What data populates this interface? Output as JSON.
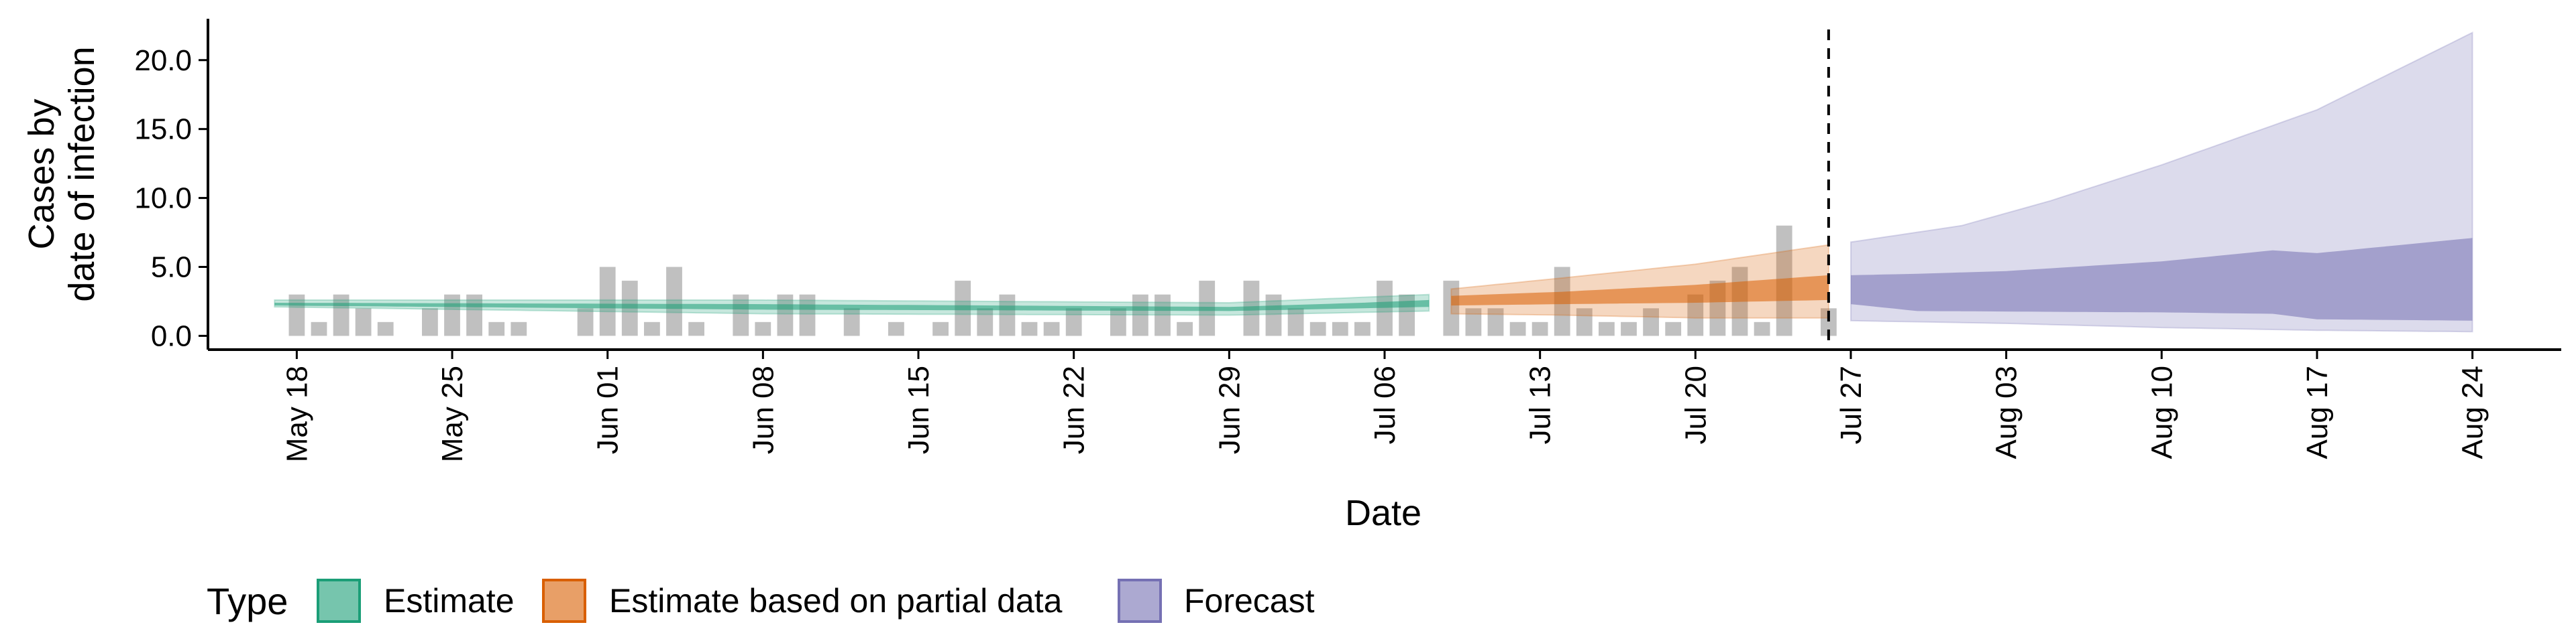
{
  "chart_data": {
    "type": "area",
    "xlabel": "Date",
    "ylabel_lines": [
      "Cases by",
      "date of infection"
    ],
    "y_ticks": [
      "0.0",
      "5.0",
      "10.0",
      "15.0",
      "20.0"
    ],
    "y_tick_values": [
      0,
      5,
      10,
      15,
      20
    ],
    "ylim": [
      -1,
      23
    ],
    "x_range": [
      "2020-05-14",
      "2020-08-28"
    ],
    "x_ticks": [
      {
        "date": "2020-05-18",
        "label": "May 18"
      },
      {
        "date": "2020-05-25",
        "label": "May 25"
      },
      {
        "date": "2020-06-01",
        "label": "Jun 01"
      },
      {
        "date": "2020-06-08",
        "label": "Jun 08"
      },
      {
        "date": "2020-06-15",
        "label": "Jun 15"
      },
      {
        "date": "2020-06-22",
        "label": "Jun 22"
      },
      {
        "date": "2020-06-29",
        "label": "Jun 29"
      },
      {
        "date": "2020-07-06",
        "label": "Jul 06"
      },
      {
        "date": "2020-07-13",
        "label": "Jul 13"
      },
      {
        "date": "2020-07-20",
        "label": "Jul 20"
      },
      {
        "date": "2020-07-27",
        "label": "Jul 27"
      },
      {
        "date": "2020-08-03",
        "label": "Aug 03"
      },
      {
        "date": "2020-08-10",
        "label": "Aug 10"
      },
      {
        "date": "2020-08-17",
        "label": "Aug 17"
      },
      {
        "date": "2020-08-24",
        "label": "Aug 24"
      }
    ],
    "reference_line_date": "2020-07-26",
    "observed_cases": {
      "color": "#bdbdbd",
      "points": [
        [
          "2020-05-18",
          3
        ],
        [
          "2020-05-19",
          1
        ],
        [
          "2020-05-20",
          3
        ],
        [
          "2020-05-21",
          2
        ],
        [
          "2020-05-22",
          1
        ],
        [
          "2020-05-24",
          2
        ],
        [
          "2020-05-25",
          3
        ],
        [
          "2020-05-26",
          3
        ],
        [
          "2020-05-27",
          1
        ],
        [
          "2020-05-28",
          1
        ],
        [
          "2020-05-31",
          2
        ],
        [
          "2020-06-01",
          5
        ],
        [
          "2020-06-02",
          4
        ],
        [
          "2020-06-03",
          1
        ],
        [
          "2020-06-04",
          5
        ],
        [
          "2020-06-05",
          1
        ],
        [
          "2020-06-07",
          3
        ],
        [
          "2020-06-08",
          1
        ],
        [
          "2020-06-09",
          3
        ],
        [
          "2020-06-10",
          3
        ],
        [
          "2020-06-12",
          2
        ],
        [
          "2020-06-14",
          1
        ],
        [
          "2020-06-16",
          1
        ],
        [
          "2020-06-17",
          4
        ],
        [
          "2020-06-18",
          2
        ],
        [
          "2020-06-19",
          3
        ],
        [
          "2020-06-20",
          1
        ],
        [
          "2020-06-21",
          1
        ],
        [
          "2020-06-22",
          2
        ],
        [
          "2020-06-24",
          2
        ],
        [
          "2020-06-25",
          3
        ],
        [
          "2020-06-26",
          3
        ],
        [
          "2020-06-27",
          1
        ],
        [
          "2020-06-28",
          4
        ],
        [
          "2020-06-30",
          4
        ],
        [
          "2020-07-01",
          3
        ],
        [
          "2020-07-02",
          2
        ],
        [
          "2020-07-03",
          1
        ],
        [
          "2020-07-04",
          1
        ],
        [
          "2020-07-05",
          1
        ],
        [
          "2020-07-06",
          4
        ],
        [
          "2020-07-07",
          3
        ],
        [
          "2020-07-09",
          4
        ],
        [
          "2020-07-10",
          2
        ],
        [
          "2020-07-11",
          2
        ],
        [
          "2020-07-12",
          1
        ],
        [
          "2020-07-13",
          1
        ],
        [
          "2020-07-14",
          5
        ],
        [
          "2020-07-15",
          2
        ],
        [
          "2020-07-16",
          1
        ],
        [
          "2020-07-17",
          1
        ],
        [
          "2020-07-18",
          2
        ],
        [
          "2020-07-19",
          1
        ],
        [
          "2020-07-20",
          3
        ],
        [
          "2020-07-21",
          4
        ],
        [
          "2020-07-22",
          5
        ],
        [
          "2020-07-23",
          1
        ],
        [
          "2020-07-24",
          8
        ],
        [
          "2020-07-26",
          2
        ]
      ]
    },
    "series": [
      {
        "name": "Estimate",
        "fill": "#1b9e77",
        "stroke": "#1b9e77",
        "outer_upper": [
          [
            "2020-05-17",
            2.6
          ],
          [
            "2020-06-08",
            2.6
          ],
          [
            "2020-06-29",
            2.4
          ],
          [
            "2020-07-05",
            2.8
          ],
          [
            "2020-07-08",
            3.0
          ]
        ],
        "outer_lower": [
          [
            "2020-05-17",
            2.1
          ],
          [
            "2020-06-08",
            1.6
          ],
          [
            "2020-06-29",
            1.5
          ],
          [
            "2020-07-05",
            1.7
          ],
          [
            "2020-07-08",
            1.8
          ]
        ],
        "inner_upper": [
          [
            "2020-05-17",
            2.4
          ],
          [
            "2020-06-08",
            2.3
          ],
          [
            "2020-06-29",
            2.1
          ],
          [
            "2020-07-05",
            2.4
          ],
          [
            "2020-07-08",
            2.6
          ]
        ],
        "inner_lower": [
          [
            "2020-05-17",
            2.2
          ],
          [
            "2020-06-08",
            1.9
          ],
          [
            "2020-06-29",
            1.8
          ],
          [
            "2020-07-05",
            2.0
          ],
          [
            "2020-07-08",
            2.1
          ]
        ]
      },
      {
        "name": "Estimate based on partial data",
        "fill": "#d95f02",
        "stroke": "#d95f02",
        "outer_upper": [
          [
            "2020-07-09",
            3.4
          ],
          [
            "2020-07-14",
            4.2
          ],
          [
            "2020-07-20",
            5.2
          ],
          [
            "2020-07-26",
            6.6
          ]
        ],
        "outer_lower": [
          [
            "2020-07-09",
            1.6
          ],
          [
            "2020-07-14",
            1.5
          ],
          [
            "2020-07-20",
            1.3
          ],
          [
            "2020-07-26",
            1.3
          ]
        ],
        "inner_upper": [
          [
            "2020-07-09",
            2.9
          ],
          [
            "2020-07-14",
            3.2
          ],
          [
            "2020-07-20",
            3.7
          ],
          [
            "2020-07-26",
            4.4
          ]
        ],
        "inner_lower": [
          [
            "2020-07-09",
            2.2
          ],
          [
            "2020-07-14",
            2.3
          ],
          [
            "2020-07-20",
            2.4
          ],
          [
            "2020-07-26",
            2.6
          ]
        ]
      },
      {
        "name": "Forecast",
        "fill": "#7570b3",
        "stroke": "#7570b3",
        "outer_upper": [
          [
            "2020-07-27",
            6.8
          ],
          [
            "2020-08-01",
            8.0
          ],
          [
            "2020-08-05",
            9.8
          ],
          [
            "2020-08-10",
            12.4
          ],
          [
            "2020-08-17",
            16.4
          ],
          [
            "2020-08-24",
            22.0
          ]
        ],
        "outer_lower": [
          [
            "2020-07-27",
            1.1
          ],
          [
            "2020-08-03",
            0.9
          ],
          [
            "2020-08-10",
            0.6
          ],
          [
            "2020-08-17",
            0.4
          ],
          [
            "2020-08-24",
            0.3
          ]
        ],
        "inner_upper": [
          [
            "2020-07-27",
            4.4
          ],
          [
            "2020-07-30",
            4.5
          ],
          [
            "2020-08-03",
            4.7
          ],
          [
            "2020-08-10",
            5.4
          ],
          [
            "2020-08-15",
            6.2
          ],
          [
            "2020-08-17",
            6.0
          ],
          [
            "2020-08-24",
            7.1
          ]
        ],
        "inner_lower": [
          [
            "2020-07-27",
            2.3
          ],
          [
            "2020-07-30",
            1.8
          ],
          [
            "2020-08-10",
            1.7
          ],
          [
            "2020-08-15",
            1.6
          ],
          [
            "2020-08-17",
            1.2
          ],
          [
            "2020-08-24",
            1.1
          ]
        ]
      }
    ],
    "legend": {
      "title": "Type",
      "position": "bottom-left",
      "items": [
        {
          "label": "Estimate",
          "color": "#1b9e77"
        },
        {
          "label": "Estimate based on partial data",
          "color": "#d95f02"
        },
        {
          "label": "Forecast",
          "color": "#7570b3"
        }
      ]
    }
  }
}
